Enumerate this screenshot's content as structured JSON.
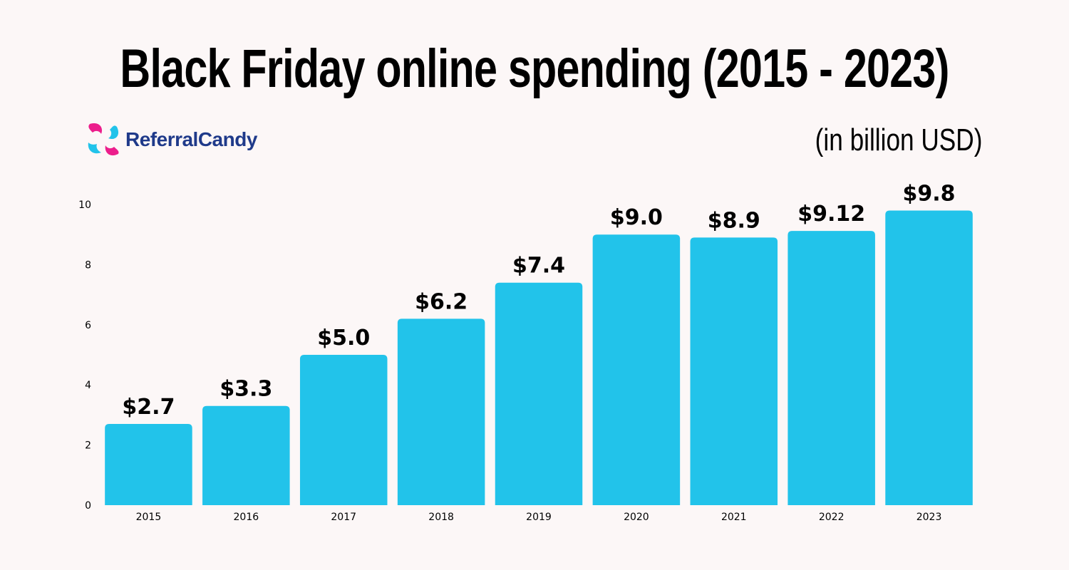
{
  "header": {
    "title": "Black Friday online spending (2015 - 2023)",
    "unit": "(in billion USD)",
    "brand": "ReferralCandy"
  },
  "colors": {
    "bar": "#22c3ea",
    "brand_blue": "#1f3a8a",
    "brand_pink": "#ec1e8c",
    "brand_cyan": "#22c3ea",
    "background": "#fcf7f7"
  },
  "chart_data": {
    "type": "bar",
    "title": "Black Friday online spending (2015 - 2023)",
    "subtitle": "(in billion USD)",
    "xlabel": "",
    "ylabel": "",
    "categories": [
      "2015",
      "2016",
      "2017",
      "2018",
      "2019",
      "2020",
      "2021",
      "2022",
      "2023"
    ],
    "values": [
      2.7,
      3.3,
      5.0,
      6.2,
      7.4,
      9.0,
      8.9,
      9.12,
      9.8
    ],
    "data_labels": [
      "$2.7",
      "$3.3",
      "$5.0",
      "$6.2",
      "$7.4",
      "$9.0",
      "$8.9",
      "$9.12",
      "$9.8"
    ],
    "ylim": [
      0,
      10
    ],
    "yticks": [
      0,
      2,
      4,
      6,
      8,
      10
    ],
    "grid": false,
    "legend": "none"
  }
}
